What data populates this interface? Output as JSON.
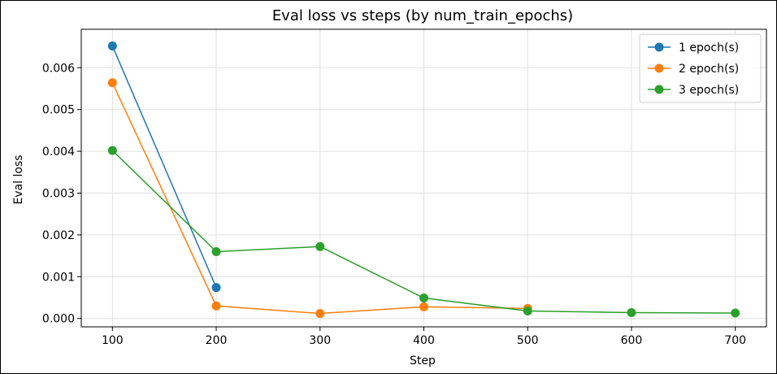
{
  "chart_data": {
    "type": "line",
    "title": "Eval loss vs steps (by num_train_epochs)",
    "xlabel": "Step",
    "ylabel": "Eval loss",
    "xlim": [
      70,
      730
    ],
    "ylim": [
      -0.0002,
      0.00692
    ],
    "xticks": [
      100,
      200,
      300,
      400,
      500,
      600,
      700
    ],
    "xtick_labels": [
      "100",
      "200",
      "300",
      "400",
      "500",
      "600",
      "700"
    ],
    "yticks": [
      0,
      0.001,
      0.002,
      0.003,
      0.004,
      0.005,
      0.006
    ],
    "ytick_labels": [
      "0.000",
      "0.001",
      "0.002",
      "0.003",
      "0.004",
      "0.005",
      "0.006"
    ],
    "grid": true,
    "legend_position": "top-right",
    "series": [
      {
        "name": "1 epoch(s)",
        "color": "#1f77b4",
        "x": [
          100,
          200
        ],
        "y": [
          0.00652,
          0.00074
        ]
      },
      {
        "name": "2 epoch(s)",
        "color": "#ff7f0e",
        "x": [
          100,
          200,
          300,
          400,
          500
        ],
        "y": [
          0.00564,
          0.0003,
          0.00012,
          0.00028,
          0.00024
        ]
      },
      {
        "name": "3 epoch(s)",
        "color": "#2ca02c",
        "x": [
          100,
          200,
          300,
          400,
          500,
          600,
          700
        ],
        "y": [
          0.00402,
          0.0016,
          0.00172,
          0.00049,
          0.00018,
          0.00014,
          0.00013
        ]
      }
    ]
  }
}
